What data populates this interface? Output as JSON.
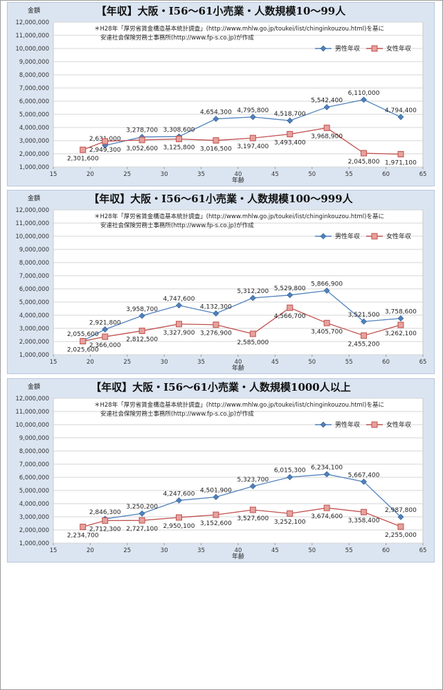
{
  "chart_data": [
    {
      "type": "line",
      "title": "【年収】大阪・I56～61小売業・人数規模10～99人",
      "note_line1": "＊H28年「厚労省賃金構造基本統計調査」(http://www.mhlw.go.jp/toukei/list/chinginkouzou.html)を基に",
      "note_line2": "安達社会保険労務士事務所(http://www.fp-s.co.jp)が作成",
      "ylabel": "金額",
      "xlabel": "年齢",
      "xlim": [
        15,
        65
      ],
      "ylim": [
        1000000,
        12000000
      ],
      "x_ticks": [
        "15",
        "20",
        "25",
        "30",
        "35",
        "40",
        "45",
        "50",
        "55",
        "60",
        "65"
      ],
      "y_ticks": [
        "1,000,000",
        "2,000,000",
        "3,000,000",
        "4,000,000",
        "5,000,000",
        "6,000,000",
        "7,000,000",
        "8,000,000",
        "9,000,000",
        "10,000,000",
        "11,000,000",
        "12,000,000"
      ],
      "grid": true,
      "legend": "top-right",
      "series": [
        {
          "name": "男性年収",
          "color": "#4f81bd",
          "marker": "diamond",
          "x": [
            22,
            27,
            32,
            37,
            42,
            47,
            52,
            57,
            62
          ],
          "values": [
            2631000,
            3278700,
            3308600,
            4654300,
            4795800,
            4518700,
            5542400,
            6110000,
            4794400
          ],
          "labels": [
            "2,631,000",
            "3,278,700",
            "3,308,600",
            "4,654,300",
            "4,795,800",
            "4,518,700",
            "5,542,400",
            "6,110,000",
            "4,794,400"
          ]
        },
        {
          "name": "女性年収",
          "color": "#c0504d",
          "marker": "square",
          "x": [
            19,
            22,
            27,
            32,
            37,
            42,
            47,
            52,
            57,
            62
          ],
          "values": [
            2301600,
            2949300,
            3052600,
            3125800,
            3016500,
            3197400,
            3493400,
            3968900,
            2045800,
            1971100
          ],
          "labels": [
            "2,301,600",
            "2,949,300",
            "3,052,600",
            "3,125,800",
            "3,016,500",
            "3,197,400",
            "3,493,400",
            "3,968,900",
            "2,045,800",
            "1,971,100"
          ]
        }
      ]
    },
    {
      "type": "line",
      "title": "【年収】大阪・I56～61小売業・人数規模100～999人",
      "note_line1": "＊H28年「厚労省賃金構造基本統計調査」(http://www.mhlw.go.jp/toukei/list/chinginkouzou.html)を基に",
      "note_line2": "安達社会保険労務士事務所(http://www.fp-s.co.jp)が作成",
      "ylabel": "金額",
      "xlabel": "年齢",
      "xlim": [
        15,
        65
      ],
      "ylim": [
        1000000,
        12000000
      ],
      "x_ticks": [
        "15",
        "20",
        "25",
        "30",
        "35",
        "40",
        "45",
        "50",
        "55",
        "60",
        "65"
      ],
      "y_ticks": [
        "1,000,000",
        "2,000,000",
        "3,000,000",
        "4,000,000",
        "5,000,000",
        "6,000,000",
        "7,000,000",
        "8,000,000",
        "9,000,000",
        "10,000,000",
        "11,000,000",
        "12,000,000"
      ],
      "grid": true,
      "legend": "top-right",
      "series": [
        {
          "name": "男性年収",
          "color": "#4f81bd",
          "marker": "diamond",
          "x": [
            19,
            22,
            27,
            32,
            37,
            42,
            47,
            52,
            57,
            62
          ],
          "values": [
            2055600,
            2921800,
            3958700,
            4747600,
            4132300,
            5312200,
            5529800,
            5866900,
            3521500,
            3758600
          ],
          "labels": [
            "2,055,600",
            "2,921,800",
            "3,958,700",
            "4,747,600",
            "4,132,300",
            "5,312,200",
            "5,529,800",
            "5,866,900",
            "3,521,500",
            "3,758,600"
          ]
        },
        {
          "name": "女性年収",
          "color": "#c0504d",
          "marker": "square",
          "x": [
            19,
            22,
            27,
            32,
            37,
            42,
            47,
            52,
            57,
            62
          ],
          "values": [
            2025600,
            2366000,
            2812500,
            3327900,
            3276900,
            2585000,
            4566700,
            3405700,
            2455200,
            3262100
          ],
          "labels": [
            "2,025,600",
            "2,366,000",
            "2,812,500",
            "3,327,900",
            "3,276,900",
            "2,585,000",
            "4,566,700",
            "3,405,700",
            "2,455,200",
            "3,262,100"
          ]
        }
      ]
    },
    {
      "type": "line",
      "title": "【年収】大阪・I56～61小売業・人数規模1000人以上",
      "note_line1": "＊H28年「厚労省賃金構造基本統計調査」(http://www.mhlw.go.jp/toukei/list/chinginkouzou.html)を基に",
      "note_line2": "安達社会保険労務士事務所(http://www.fp-s.co.jp)が作成",
      "ylabel": "金額",
      "xlabel": "年齢",
      "xlim": [
        15,
        65
      ],
      "ylim": [
        1000000,
        12000000
      ],
      "x_ticks": [
        "15",
        "20",
        "25",
        "30",
        "35",
        "40",
        "45",
        "50",
        "55",
        "60",
        "65"
      ],
      "y_ticks": [
        "1,000,000",
        "2,000,000",
        "3,000,000",
        "4,000,000",
        "5,000,000",
        "6,000,000",
        "7,000,000",
        "8,000,000",
        "9,000,000",
        "10,000,000",
        "11,000,000",
        "12,000,000"
      ],
      "grid": true,
      "legend": "top-right",
      "series": [
        {
          "name": "男性年収",
          "color": "#4f81bd",
          "marker": "diamond",
          "x": [
            22,
            27,
            32,
            37,
            42,
            47,
            52,
            57,
            62
          ],
          "values": [
            2846300,
            3250200,
            4247600,
            4501900,
            5323700,
            6015300,
            6234100,
            5667400,
            2987800
          ],
          "labels": [
            "2,846,300",
            "3,250,200",
            "4,247,600",
            "4,501,900",
            "5,323,700",
            "6,015,300",
            "6,234,100",
            "5,667,400",
            "2,987,800"
          ]
        },
        {
          "name": "女性年収",
          "color": "#c0504d",
          "marker": "square",
          "x": [
            19,
            22,
            27,
            32,
            37,
            42,
            47,
            52,
            57,
            62
          ],
          "values": [
            2234700,
            2712300,
            2727100,
            2950100,
            3152600,
            3527600,
            3252100,
            3674600,
            3358400,
            2255000
          ],
          "labels": [
            "2,234,700",
            "2,712,300",
            "2,727,100",
            "2,950,100",
            "3,152,600",
            "3,527,600",
            "3,252,100",
            "3,674,600",
            "3,358,400",
            "2,255,000"
          ]
        }
      ]
    }
  ]
}
